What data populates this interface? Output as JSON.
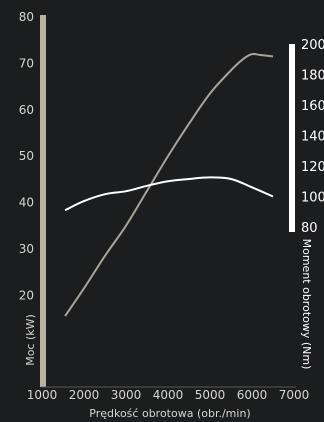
{
  "chart_data": {
    "type": "line",
    "title": "",
    "xlabel": "Prędkość obrotowa (obr./min)",
    "ylabel_left": "Moc (kW)",
    "ylabel_right": "Moment obrotowy (Nm)",
    "xlim": [
      1000,
      7000
    ],
    "ylim_left": [
      0,
      80
    ],
    "ylim_right": [
      80,
      200
    ],
    "x_ticks": [
      "1000",
      "2000",
      "3000",
      "4000",
      "5000",
      "6000",
      "7000"
    ],
    "y_left_ticks": [
      "20",
      "30",
      "40",
      "50",
      "60",
      "70",
      "80"
    ],
    "y_right_ticks": [
      "80",
      "100",
      "120",
      "140",
      "160",
      "180",
      "200"
    ],
    "grid": false,
    "series": [
      {
        "axis": "left",
        "color": "#a8a496",
        "x": [
          1550,
          2000,
          2500,
          3000,
          3500,
          4000,
          4500,
          5000,
          5500,
          5800,
          6000,
          6200,
          6500
        ],
        "y": [
          15.5,
          21.5,
          28.5,
          35,
          42.5,
          50,
          57,
          63.5,
          68.5,
          71,
          72,
          71.8,
          71.5
        ]
      },
      {
        "axis": "right",
        "color": "#ffffff",
        "x": [
          1550,
          2000,
          2500,
          3000,
          3500,
          4000,
          4500,
          5000,
          5500,
          6000,
          6500
        ],
        "y": [
          91,
          97,
          101.5,
          103.5,
          107,
          110,
          111.5,
          112.5,
          111.5,
          106,
          100
        ]
      }
    ]
  }
}
